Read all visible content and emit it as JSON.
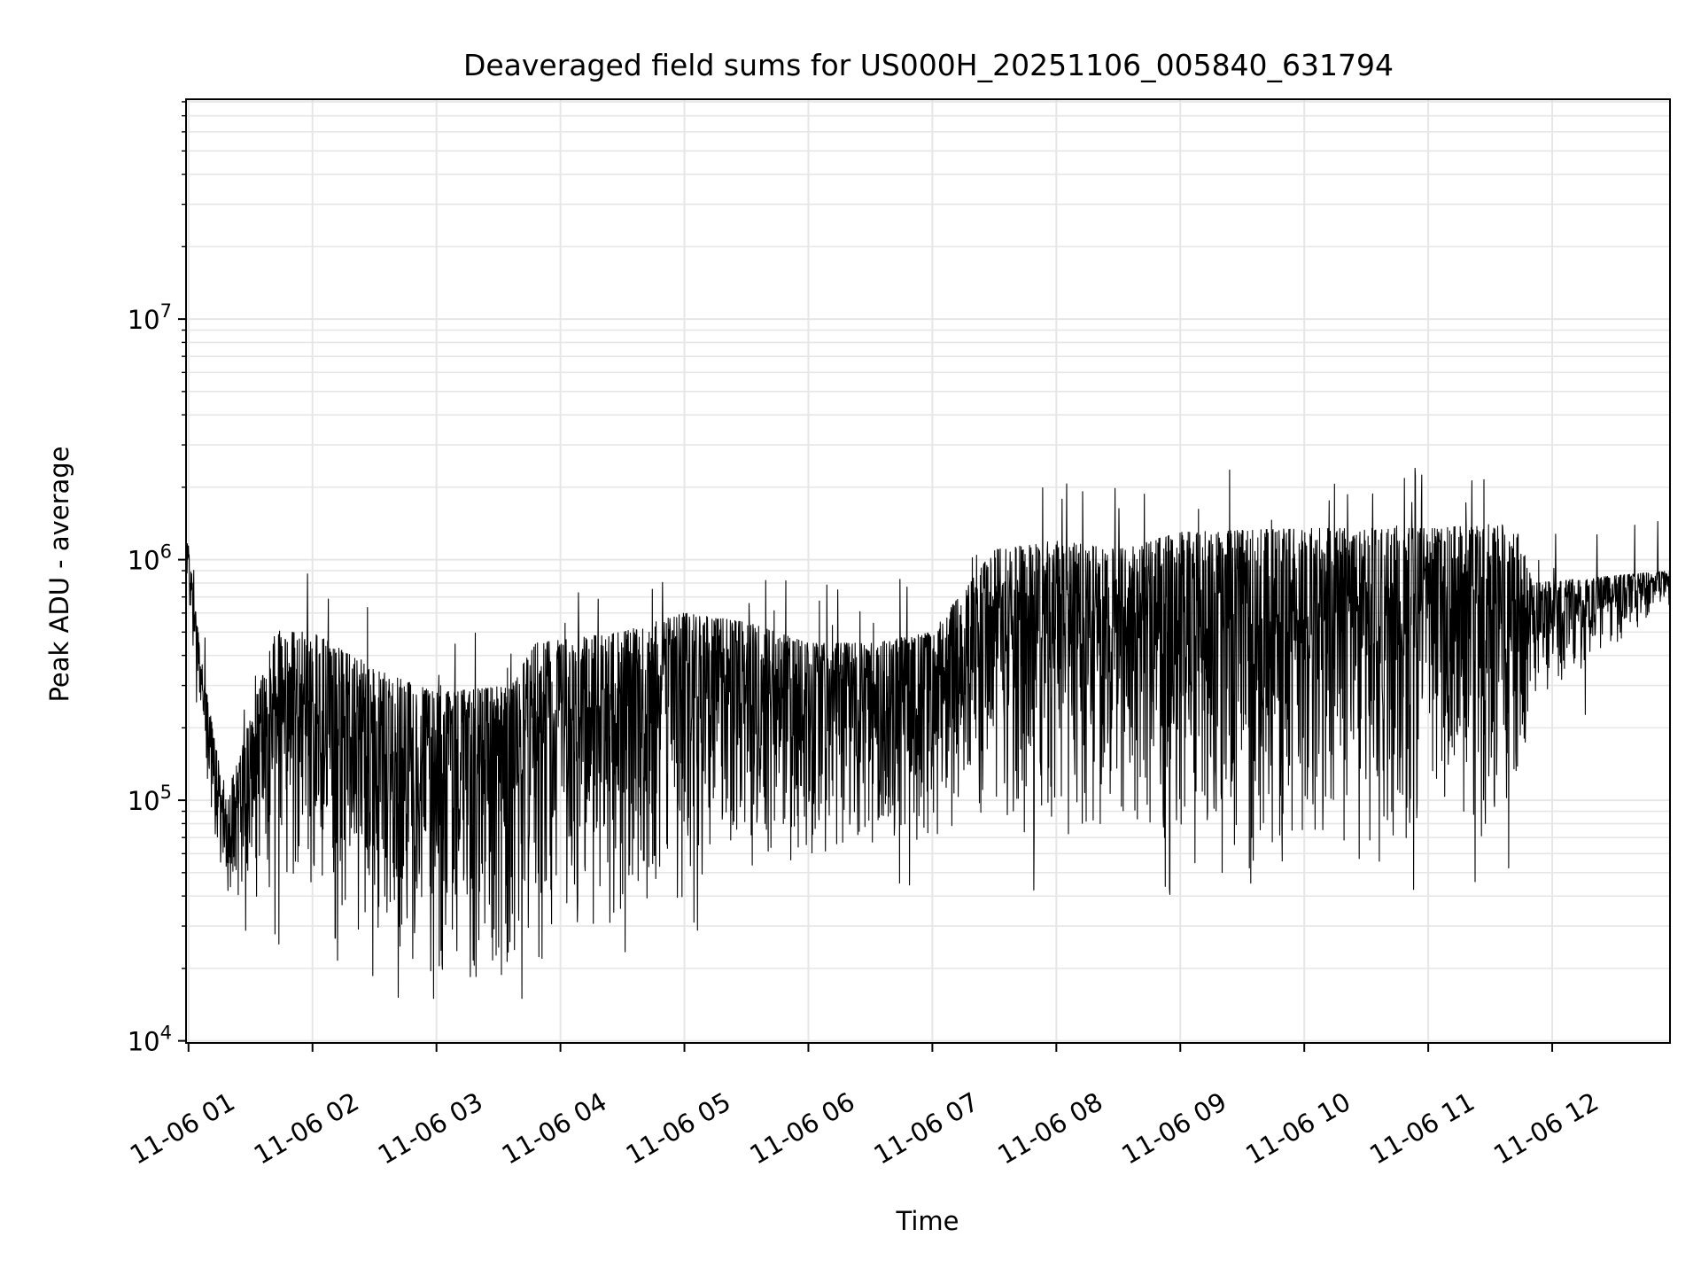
{
  "chart_data": {
    "type": "line",
    "title": "Deaveraged field sums for US000H_20251106_005840_631794",
    "xlabel": "Time",
    "ylabel": "Peak ADU - average",
    "yscale": "log",
    "ylim": [
      9800,
      82000000
    ],
    "xlim_hours": [
      0.98,
      12.95
    ],
    "grid": true,
    "line_color": "#000000",
    "grid_color": "#e6e6e6",
    "x_ticks": [
      {
        "hour": 1,
        "label": "11-06 01"
      },
      {
        "hour": 2,
        "label": "11-06 02"
      },
      {
        "hour": 3,
        "label": "11-06 03"
      },
      {
        "hour": 4,
        "label": "11-06 04"
      },
      {
        "hour": 5,
        "label": "11-06 05"
      },
      {
        "hour": 6,
        "label": "11-06 06"
      },
      {
        "hour": 7,
        "label": "11-06 07"
      },
      {
        "hour": 8,
        "label": "11-06 08"
      },
      {
        "hour": 9,
        "label": "11-06 09"
      },
      {
        "hour": 10,
        "label": "11-06 10"
      },
      {
        "hour": 11,
        "label": "11-06 11"
      },
      {
        "hour": 12,
        "label": "11-06 12"
      }
    ],
    "y_ticks": [
      {
        "exp": 4,
        "base": "10",
        "sup": "4"
      },
      {
        "exp": 5,
        "base": "10",
        "sup": "5"
      },
      {
        "exp": 6,
        "base": "10",
        "sup": "6"
      },
      {
        "exp": 7,
        "base": "10",
        "sup": "7"
      }
    ],
    "series_envelope": {
      "name": "Peak ADU - average",
      "hours": [
        0.98,
        1.1,
        1.2,
        1.3,
        1.7,
        2.0,
        2.5,
        3.0,
        3.6,
        3.8,
        4.5,
        5.0,
        5.5,
        6.0,
        6.5,
        7.0,
        7.5,
        8.0,
        8.5,
        9.0,
        10.0,
        11.0,
        11.5,
        11.7,
        11.85,
        12.95
      ],
      "low": [
        600000,
        250000,
        60000,
        35000,
        40000,
        40000,
        25000,
        18000,
        18000,
        30000,
        30000,
        40000,
        50000,
        55000,
        60000,
        70000,
        70000,
        70000,
        80000,
        65000,
        65000,
        65000,
        65000,
        70000,
        250000,
        650000
      ],
      "high": [
        1400000,
        400000,
        200000,
        100000,
        500000,
        500000,
        350000,
        280000,
        300000,
        450000,
        500000,
        600000,
        550000,
        450000,
        450000,
        500000,
        1100000,
        1200000,
        1100000,
        1300000,
        1350000,
        1350000,
        1400000,
        1400000,
        800000,
        900000
      ],
      "spike_max": 2400000,
      "min_observed": 15000,
      "max_observed": 2400000
    }
  }
}
